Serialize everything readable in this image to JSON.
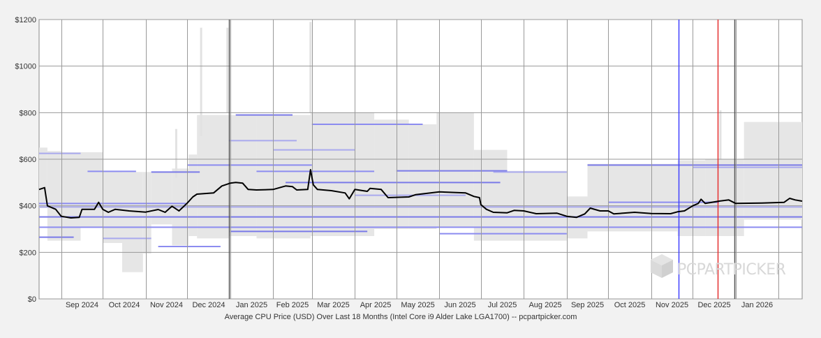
{
  "chart_data": {
    "type": "line",
    "title": "",
    "caption": "Average CPU Price (USD) Over Last 18 Months (Intel Core i9 Alder Lake LGA1700) -- pcpartpicker.com",
    "xlabel": "",
    "ylabel": "",
    "ylim": [
      0,
      1200
    ],
    "xlim": [
      "2024-08-16",
      "2026-02-18"
    ],
    "grid": true,
    "y_ticks": [
      "$0",
      "$200",
      "$400",
      "$600",
      "$800",
      "$1000",
      "$1200"
    ],
    "x_ticks": [
      "Sep 2024",
      "Oct 2024",
      "Nov 2024",
      "Dec 2024",
      "Jan 2025",
      "Feb 2025",
      "Mar 2025",
      "Apr 2025",
      "May 2025",
      "Jun 2025",
      "Jul 2025",
      "Aug 2025",
      "Sep 2025",
      "Oct 2025",
      "Nov 2025",
      "Dec 2025",
      "Jan 2026"
    ],
    "series": [
      {
        "name": "Average",
        "color": "#000000",
        "points": [
          [
            "2024-08-16",
            470
          ],
          [
            "2024-08-20",
            478
          ],
          [
            "2024-08-22",
            400
          ],
          [
            "2024-08-28",
            385
          ],
          [
            "2024-09-01",
            355
          ],
          [
            "2024-09-08",
            348
          ],
          [
            "2024-09-14",
            350
          ],
          [
            "2024-09-16",
            385
          ],
          [
            "2024-09-25",
            385
          ],
          [
            "2024-09-28",
            415
          ],
          [
            "2024-10-01",
            385
          ],
          [
            "2024-10-05",
            372
          ],
          [
            "2024-10-10",
            385
          ],
          [
            "2024-10-20",
            378
          ],
          [
            "2024-11-01",
            373
          ],
          [
            "2024-11-10",
            384
          ],
          [
            "2024-11-15",
            372
          ],
          [
            "2024-11-20",
            398
          ],
          [
            "2024-11-25",
            378
          ],
          [
            "2024-12-01",
            412
          ],
          [
            "2024-12-05",
            438
          ],
          [
            "2024-12-08",
            450
          ],
          [
            "2024-12-20",
            455
          ],
          [
            "2024-12-26",
            485
          ],
          [
            "2025-01-01",
            497
          ],
          [
            "2025-01-05",
            500
          ],
          [
            "2025-01-10",
            497
          ],
          [
            "2025-01-14",
            470
          ],
          [
            "2025-01-20",
            468
          ],
          [
            "2025-02-01",
            470
          ],
          [
            "2025-02-10",
            485
          ],
          [
            "2025-02-15",
            482
          ],
          [
            "2025-02-18",
            468
          ],
          [
            "2025-02-26",
            470
          ],
          [
            "2025-02-28",
            555
          ],
          [
            "2025-03-02",
            490
          ],
          [
            "2025-03-05",
            470
          ],
          [
            "2025-03-15",
            465
          ],
          [
            "2025-03-25",
            455
          ],
          [
            "2025-03-28",
            430
          ],
          [
            "2025-04-01",
            470
          ],
          [
            "2025-04-10",
            462
          ],
          [
            "2025-04-12",
            475
          ],
          [
            "2025-04-20",
            470
          ],
          [
            "2025-04-25",
            435
          ],
          [
            "2025-05-10",
            438
          ],
          [
            "2025-05-15",
            448
          ],
          [
            "2025-06-01",
            460
          ],
          [
            "2025-06-20",
            455
          ],
          [
            "2025-06-26",
            440
          ],
          [
            "2025-06-30",
            435
          ],
          [
            "2025-07-01",
            405
          ],
          [
            "2025-07-05",
            385
          ],
          [
            "2025-07-10",
            372
          ],
          [
            "2025-07-20",
            370
          ],
          [
            "2025-07-25",
            380
          ],
          [
            "2025-08-01",
            378
          ],
          [
            "2025-08-10",
            366
          ],
          [
            "2025-08-25",
            368
          ],
          [
            "2025-09-01",
            355
          ],
          [
            "2025-09-08",
            350
          ],
          [
            "2025-09-14",
            365
          ],
          [
            "2025-09-18",
            390
          ],
          [
            "2025-09-25",
            378
          ],
          [
            "2025-10-01",
            378
          ],
          [
            "2025-10-05",
            365
          ],
          [
            "2025-10-20",
            372
          ],
          [
            "2025-11-01",
            367
          ],
          [
            "2025-11-15",
            366
          ],
          [
            "2025-11-20",
            374
          ],
          [
            "2025-11-25",
            378
          ],
          [
            "2025-12-01",
            400
          ],
          [
            "2025-12-05",
            410
          ],
          [
            "2025-12-07",
            428
          ],
          [
            "2025-12-10",
            410
          ],
          [
            "2025-12-20",
            420
          ],
          [
            "2025-12-27",
            425
          ],
          [
            "2026-01-01",
            410
          ],
          [
            "2026-01-20",
            412
          ],
          [
            "2026-02-05",
            415
          ],
          [
            "2026-02-09",
            432
          ],
          [
            "2026-02-13",
            425
          ],
          [
            "2026-02-18",
            420
          ]
        ]
      }
    ],
    "vertical_markers": [
      {
        "date": "2024-12-31",
        "color": "#555555"
      },
      {
        "date": "2025-11-21",
        "color": "#4040ff"
      },
      {
        "date": "2025-12-19",
        "color": "#e53030"
      },
      {
        "date": "2025-12-31",
        "color": "#555555"
      }
    ],
    "price_ranges": [
      {
        "from": "2024-08-16",
        "to": "2024-08-22",
        "low": 390,
        "high": 650
      },
      {
        "from": "2024-08-22",
        "to": "2024-09-01",
        "low": 250,
        "high": 635
      },
      {
        "from": "2024-09-01",
        "to": "2024-09-15",
        "low": 250,
        "high": 630
      },
      {
        "from": "2024-09-15",
        "to": "2024-10-01",
        "low": 310,
        "high": 630
      },
      {
        "from": "2024-10-01",
        "to": "2024-10-15",
        "low": 240,
        "high": 550
      },
      {
        "from": "2024-10-15",
        "to": "2024-10-30",
        "low": 115,
        "high": 545
      },
      {
        "from": "2024-10-30",
        "to": "2024-11-05",
        "low": 195,
        "high": 545
      },
      {
        "from": "2024-11-05",
        "to": "2024-11-20",
        "low": 320,
        "high": 545
      },
      {
        "from": "2024-11-20",
        "to": "2024-12-02",
        "low": 230,
        "high": 560
      },
      {
        "from": "2024-12-02",
        "to": "2024-12-08",
        "low": 270,
        "high": 620
      },
      {
        "from": "2024-12-08",
        "to": "2024-12-31",
        "low": 260,
        "high": 790
      },
      {
        "from": "2024-12-31",
        "to": "2025-01-20",
        "low": 270,
        "high": 790
      },
      {
        "from": "2025-01-20",
        "to": "2025-02-28",
        "low": 260,
        "high": 790
      },
      {
        "from": "2025-02-28",
        "to": "2025-04-15",
        "low": 270,
        "high": 800
      },
      {
        "from": "2025-04-15",
        "to": "2025-05-10",
        "low": 300,
        "high": 770
      },
      {
        "from": "2025-05-10",
        "to": "2025-05-30",
        "low": 300,
        "high": 750
      },
      {
        "from": "2025-05-30",
        "to": "2025-06-26",
        "low": 310,
        "high": 800
      },
      {
        "from": "2025-06-26",
        "to": "2025-07-20",
        "low": 250,
        "high": 640
      },
      {
        "from": "2025-07-20",
        "to": "2025-09-01",
        "low": 250,
        "high": 550
      },
      {
        "from": "2025-09-01",
        "to": "2025-09-16",
        "low": 260,
        "high": 440
      },
      {
        "from": "2025-09-16",
        "to": "2025-11-20",
        "low": 290,
        "high": 580
      },
      {
        "from": "2025-11-20",
        "to": "2025-12-10",
        "low": 270,
        "high": 595
      },
      {
        "from": "2025-12-10",
        "to": "2026-01-07",
        "low": 270,
        "high": 600
      },
      {
        "from": "2026-01-07",
        "to": "2026-02-18",
        "low": 340,
        "high": 760
      }
    ],
    "spikes": [
      {
        "date": "2024-11-23",
        "low": 520,
        "high": 730
      },
      {
        "date": "2024-12-11",
        "low": 700,
        "high": 1165
      },
      {
        "date": "2024-12-30",
        "low": 800,
        "high": 1165
      },
      {
        "date": "2025-02-28",
        "low": 800,
        "high": 1190
      },
      {
        "date": "2025-12-21",
        "low": 600,
        "high": 810
      }
    ],
    "retailer_lines": [
      {
        "from": "2024-08-16",
        "to": "2024-11-30",
        "y": 410
      },
      {
        "from": "2024-08-16",
        "to": "2026-02-18",
        "y": 395
      },
      {
        "from": "2024-08-16",
        "to": "2026-02-18",
        "y": 352
      },
      {
        "from": "2024-08-16",
        "to": "2026-02-18",
        "y": 308
      },
      {
        "from": "2024-08-16",
        "to": "2024-09-15",
        "y": 625
      },
      {
        "from": "2024-08-16",
        "to": "2024-09-10",
        "y": 265
      },
      {
        "from": "2024-09-20",
        "to": "2024-10-25",
        "y": 548
      },
      {
        "from": "2024-10-01",
        "to": "2024-11-05",
        "y": 260
      },
      {
        "from": "2024-11-05",
        "to": "2024-12-10",
        "y": 545
      },
      {
        "from": "2024-12-01",
        "to": "2025-03-01",
        "y": 575
      },
      {
        "from": "2024-12-31",
        "to": "2025-02-18",
        "y": 680
      },
      {
        "from": "2025-01-05",
        "to": "2025-02-15",
        "y": 790
      },
      {
        "from": "2025-01-20",
        "to": "2025-04-15",
        "y": 548
      },
      {
        "from": "2025-02-01",
        "to": "2025-04-01",
        "y": 640
      },
      {
        "from": "2025-02-10",
        "to": "2025-07-15",
        "y": 500
      },
      {
        "from": "2025-03-01",
        "to": "2025-05-20",
        "y": 750
      },
      {
        "from": "2025-04-01",
        "to": "2025-06-20",
        "y": 445
      },
      {
        "from": "2025-05-01",
        "to": "2025-07-20",
        "y": 550
      },
      {
        "from": "2025-06-01",
        "to": "2025-09-01",
        "y": 280
      },
      {
        "from": "2025-07-10",
        "to": "2025-09-01",
        "y": 545
      },
      {
        "from": "2025-09-16",
        "to": "2026-02-18",
        "y": 575
      },
      {
        "from": "2025-10-01",
        "to": "2025-12-20",
        "y": 415
      },
      {
        "from": "2025-12-01",
        "to": "2026-02-18",
        "y": 565
      },
      {
        "from": "2025-01-01",
        "to": "2025-04-10",
        "y": 290
      },
      {
        "from": "2024-11-10",
        "to": "2024-12-25",
        "y": 225
      }
    ]
  },
  "watermark": {
    "text": "PCPARTPICKER"
  }
}
